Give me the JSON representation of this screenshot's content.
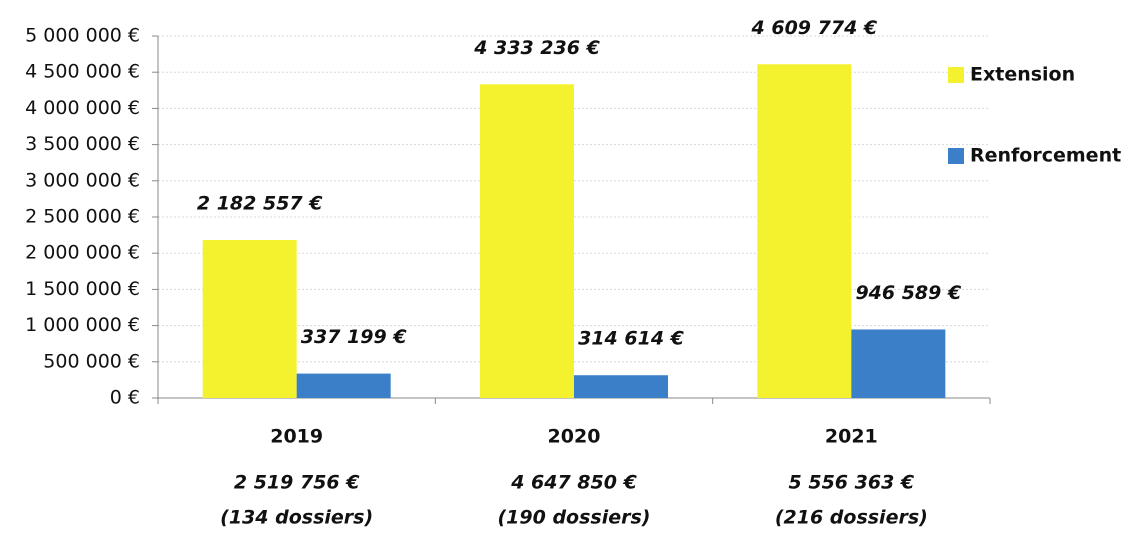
{
  "chart_data": {
    "type": "bar",
    "categories": [
      "2019",
      "2020",
      "2021"
    ],
    "series": [
      {
        "name": "Extension",
        "color": "#f4f22e",
        "values": [
          2182557,
          4333236,
          4609774
        ],
        "value_labels": [
          "2 182 557 €",
          "4 333 236 €",
          "4 609 774 €"
        ]
      },
      {
        "name": "Renforcement",
        "color": "#3b7fc9",
        "values": [
          337199,
          314614,
          946589
        ],
        "value_labels": [
          "337 199 €",
          "314 614 €",
          "946 589 €"
        ]
      }
    ],
    "totals": [
      "2 519 756 €",
      "4 647 850 €",
      "5 556 363 €"
    ],
    "dossiers": [
      "(134 dossiers)",
      "(190 dossiers)",
      "(216 dossiers)"
    ],
    "ylim": [
      0,
      5000000
    ],
    "yticks": [
      {
        "value": 0,
        "label": "0 €"
      },
      {
        "value": 500000,
        "label": "500 000 €"
      },
      {
        "value": 1000000,
        "label": "1 000 000 €"
      },
      {
        "value": 1500000,
        "label": "1 500 000 €"
      },
      {
        "value": 2000000,
        "label": "2 000 000 €"
      },
      {
        "value": 2500000,
        "label": "2 500 000 €"
      },
      {
        "value": 3000000,
        "label": "3 000 000 €"
      },
      {
        "value": 3500000,
        "label": "3 500 000 €"
      },
      {
        "value": 4000000,
        "label": "4 000 000 €"
      },
      {
        "value": 4500000,
        "label": "4 500 000 €"
      },
      {
        "value": 5000000,
        "label": "5 000 000 €"
      }
    ],
    "grid": true,
    "legend": "right"
  }
}
